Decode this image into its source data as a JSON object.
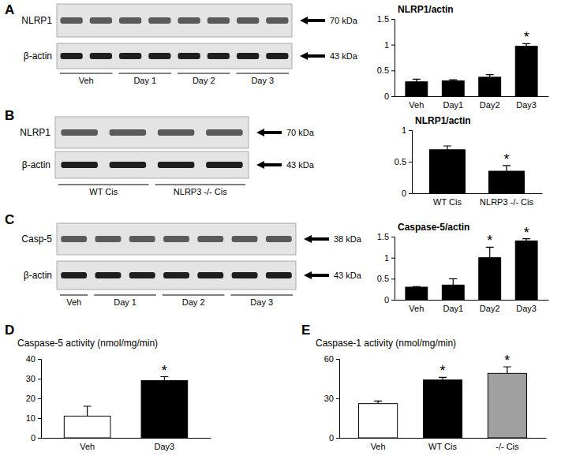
{
  "chart_data": [
    {
      "type": "bar",
      "panel": "A",
      "title": "NLRP1/actin",
      "categories": [
        "Veh",
        "Day1",
        "Day2",
        "Day3"
      ],
      "values": [
        0.28,
        0.3,
        0.37,
        0.97
      ],
      "errors": [
        0.05,
        0.02,
        0.05,
        0.05
      ],
      "significance": [
        null,
        null,
        null,
        "*"
      ],
      "color": "#000000",
      "ylim": [
        0,
        1.5
      ],
      "yticks": [
        0,
        0.5,
        1,
        1.5
      ]
    },
    {
      "type": "bar",
      "panel": "B",
      "title": "NLRP1/actin",
      "categories": [
        "WT Cis",
        "NLRP3 -/- Cis"
      ],
      "values": [
        0.69,
        0.35
      ],
      "errors": [
        0.06,
        0.09
      ],
      "significance": [
        null,
        "*"
      ],
      "color": "#000000",
      "ylim": [
        0,
        1
      ],
      "yticks": [
        0,
        0.5,
        1
      ]
    },
    {
      "type": "bar",
      "panel": "C",
      "title": "Caspase-5/actin",
      "categories": [
        "Veh",
        "Day1",
        "Day2",
        "Day3"
      ],
      "values": [
        0.3,
        0.35,
        1.0,
        1.4
      ],
      "errors": [
        0.01,
        0.15,
        0.25,
        0.05
      ],
      "significance": [
        null,
        null,
        "*",
        "*"
      ],
      "color": "#000000",
      "ylim": [
        0,
        1.5
      ],
      "yticks": [
        0,
        0.5,
        1,
        1.5
      ]
    },
    {
      "type": "bar",
      "panel": "D",
      "title": "Caspase-5 activity (nmol/mg/min)",
      "categories": [
        "Veh",
        "Day3"
      ],
      "values": [
        11,
        29
      ],
      "errors": [
        5,
        2
      ],
      "significance": [
        null,
        "*"
      ],
      "colors": [
        "#ffffff",
        "#000000"
      ],
      "ylim": [
        0,
        40
      ],
      "yticks": [
        0,
        10,
        20,
        30,
        40
      ]
    },
    {
      "type": "bar",
      "panel": "E",
      "title": "Caspase-1 activity (nmol/mg/min)",
      "categories": [
        "Veh",
        "WT Cis",
        "-/- Cis"
      ],
      "values": [
        26,
        44,
        49
      ],
      "errors": [
        2,
        2,
        5
      ],
      "significance": [
        null,
        "*",
        "*"
      ],
      "colors": [
        "#ffffff",
        "#000000",
        "#a0a0a0"
      ],
      "ylim": [
        0,
        60
      ],
      "yticks": [
        0,
        30,
        60
      ]
    }
  ],
  "blots": [
    {
      "rows": [
        {
          "protein": "NLRP1",
          "size": "70 kDa"
        },
        {
          "protein": "β-actin",
          "size": "43 kDa"
        }
      ],
      "lanes": [
        "Veh",
        "Day 1",
        "Day 2",
        "Day 3"
      ]
    },
    {
      "rows": [
        {
          "protein": "NLRP1",
          "size": "70 kDa"
        },
        {
          "protein": "β-actin",
          "size": "43 kDa"
        }
      ],
      "lanes": [
        "WT Cis",
        "NLRP3 -/- Cis"
      ]
    },
    {
      "rows": [
        {
          "protein": "Casp-5",
          "size": "38 kDa"
        },
        {
          "protein": "β-actin",
          "size": "43 kDa"
        }
      ],
      "lanes": [
        "Veh",
        "Day 1",
        "Day 2",
        "Day 3"
      ]
    }
  ]
}
